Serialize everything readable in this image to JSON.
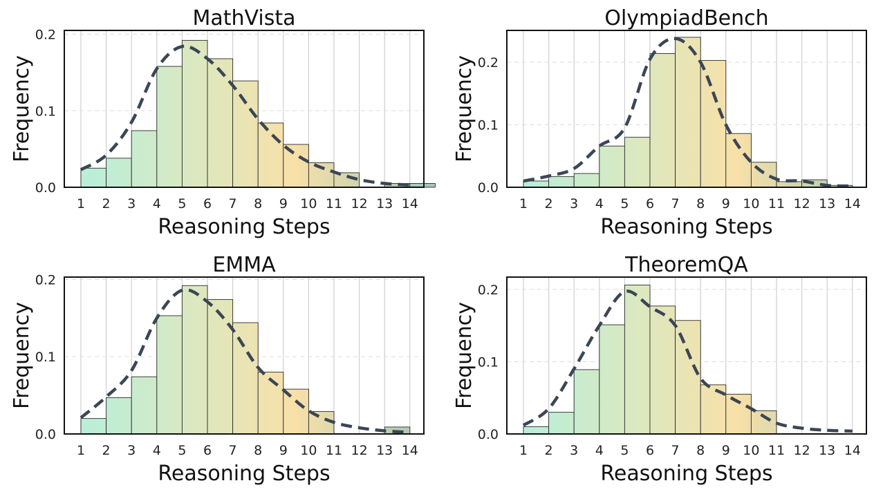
{
  "figure": {
    "colors": {
      "kde_line": "#3b4655",
      "bar_edge": "#2a2a2a",
      "gridline": "#cfcfcf",
      "gradient": [
        "#b3f0de",
        "#dbe8c0",
        "#f8e0a8",
        "#a6c9b8"
      ]
    }
  },
  "chart_data": [
    {
      "type": "bar",
      "title": "MathVista",
      "xlabel": "Reasoning Steps",
      "ylabel": "Frequency",
      "categories": [
        1,
        2,
        3,
        4,
        5,
        6,
        7,
        8,
        9,
        10,
        11,
        12,
        13,
        14
      ],
      "values": [
        0.025,
        0.038,
        0.074,
        0.158,
        0.192,
        0.168,
        0.139,
        0.084,
        0.056,
        0.032,
        0.019,
        0.0,
        0.005,
        0.005
      ],
      "kde": [
        0.023,
        0.042,
        0.085,
        0.155,
        0.184,
        0.168,
        0.133,
        0.089,
        0.055,
        0.033,
        0.02,
        0.01,
        0.005,
        0.003
      ],
      "ylim": [
        0,
        0.205
      ],
      "yticks": [
        0.0,
        0.1,
        0.2
      ],
      "ytick_labels": [
        "0.0",
        "0.1",
        "0.2"
      ]
    },
    {
      "type": "bar",
      "title": "OlympiadBench",
      "xlabel": "Reasoning Steps",
      "ylabel": "Frequency",
      "categories": [
        1,
        2,
        3,
        4,
        5,
        6,
        7,
        8,
        9,
        10,
        11,
        12,
        13,
        14
      ],
      "values": [
        0.01,
        0.017,
        0.022,
        0.066,
        0.08,
        0.214,
        0.24,
        0.203,
        0.086,
        0.04,
        0.009,
        0.012,
        0.003,
        0.0
      ],
      "kde": [
        0.01,
        0.018,
        0.03,
        0.066,
        0.095,
        0.205,
        0.238,
        0.2,
        0.1,
        0.04,
        0.013,
        0.01,
        0.003,
        0.002
      ],
      "ylim": [
        0,
        0.251
      ],
      "yticks": [
        0.0,
        0.1,
        0.2
      ],
      "ytick_labels": [
        "0.0",
        "0.1",
        "0.2"
      ]
    },
    {
      "type": "bar",
      "title": "EMMA",
      "xlabel": "Reasoning Steps",
      "ylabel": "Frequency",
      "categories": [
        1,
        2,
        3,
        4,
        5,
        6,
        7,
        8,
        9,
        10,
        11,
        12,
        13,
        14
      ],
      "values": [
        0.02,
        0.047,
        0.074,
        0.153,
        0.192,
        0.174,
        0.144,
        0.08,
        0.058,
        0.029,
        0.0,
        0.0,
        0.009,
        0.0
      ],
      "kde": [
        0.021,
        0.048,
        0.082,
        0.15,
        0.186,
        0.171,
        0.135,
        0.086,
        0.057,
        0.03,
        0.015,
        0.008,
        0.004,
        0.002
      ],
      "ylim": [
        0,
        0.203
      ],
      "yticks": [
        0.0,
        0.1,
        0.2
      ],
      "ytick_labels": [
        "0.0",
        "0.1",
        "0.2"
      ]
    },
    {
      "type": "bar",
      "title": "TheoremQA",
      "xlabel": "Reasoning Steps",
      "ylabel": "Frequency",
      "categories": [
        1,
        2,
        3,
        4,
        5,
        6,
        7,
        8,
        9,
        10,
        11,
        12,
        13,
        14
      ],
      "values": [
        0.01,
        0.03,
        0.089,
        0.151,
        0.206,
        0.177,
        0.157,
        0.068,
        0.055,
        0.032,
        0.0,
        0.0,
        0.0,
        0.0
      ],
      "kde": [
        0.012,
        0.035,
        0.09,
        0.15,
        0.197,
        0.176,
        0.15,
        0.077,
        0.054,
        0.035,
        0.015,
        0.008,
        0.005,
        0.004
      ],
      "ylim": [
        0,
        0.217
      ],
      "yticks": [
        0.0,
        0.1,
        0.2
      ],
      "ytick_labels": [
        "0.0",
        "0.1",
        "0.2"
      ]
    }
  ]
}
